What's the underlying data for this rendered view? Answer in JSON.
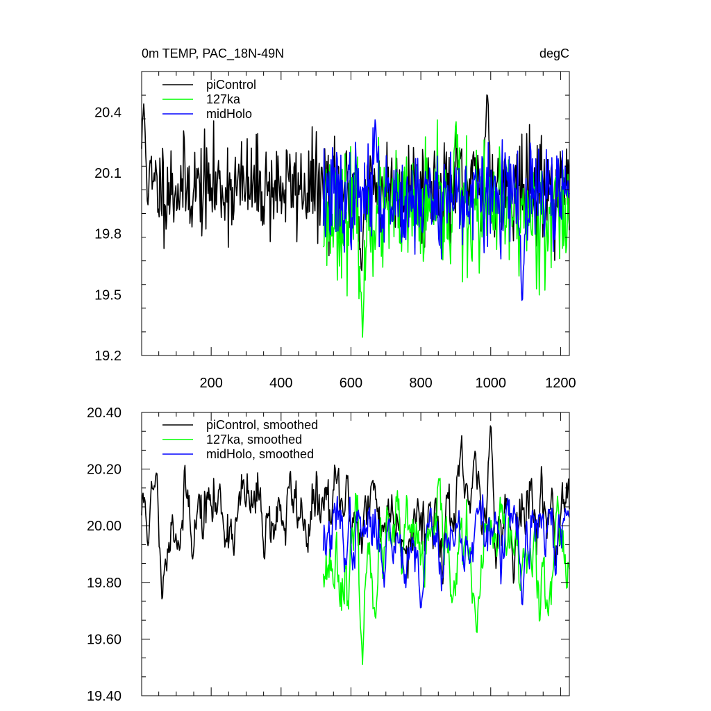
{
  "figure": {
    "title_left": "0m TEMP, PAC_18N-49N",
    "title_right": "degC"
  },
  "chart_data": [
    {
      "type": "line",
      "title": "0m TEMP, PAC_18N-49N",
      "units": "degC",
      "xlim": [
        1,
        1225
      ],
      "ylim": [
        19.2,
        20.6
      ],
      "x_ticks": [
        200,
        400,
        600,
        800,
        1000,
        1200
      ],
      "x_tick_labels": [
        "200",
        "400",
        "600",
        "800",
        "1000",
        "1200"
      ],
      "y_ticks": [
        19.2,
        19.5,
        19.8,
        20.1,
        20.4
      ],
      "y_tick_labels": [
        "19.2",
        "19.5",
        "19.8",
        "20.1",
        "20.4"
      ],
      "legend_position": "top-left",
      "series": [
        {
          "name": "piControl",
          "color": "#000000",
          "x_range": [
            1,
            1225
          ],
          "mean": 20.03,
          "spread": 0.16,
          "seed": 11,
          "extremes": [
            [
              7,
              20.44
            ],
            [
              630,
              19.6
            ],
            [
              990,
              20.52
            ]
          ]
        },
        {
          "name": "127ka",
          "color": "#00ff00",
          "x_range": [
            521,
            1225
          ],
          "mean": 19.9,
          "spread": 0.2,
          "seed": 23,
          "extremes": [
            [
              633,
              19.29
            ],
            [
              900,
              20.38
            ]
          ]
        },
        {
          "name": "midHolo",
          "color": "#0000ff",
          "x_range": [
            521,
            1225
          ],
          "mean": 19.98,
          "spread": 0.17,
          "seed": 37,
          "extremes": [
            [
              670,
              20.37
            ],
            [
              1090,
              19.44
            ]
          ]
        }
      ]
    },
    {
      "type": "line",
      "xlim": [
        1,
        1225
      ],
      "ylim": [
        19.4,
        20.4
      ],
      "x_ticks": [
        200,
        400,
        600,
        800,
        1000,
        1200
      ],
      "y_ticks": [
        19.4,
        19.6,
        19.8,
        20.0,
        20.2,
        20.4
      ],
      "y_tick_labels": [
        "19.40",
        "19.60",
        "19.80",
        "20.00",
        "20.20",
        "20.40"
      ],
      "legend_position": "top-left",
      "series": [
        {
          "name": "piControl, smoothed",
          "color": "#000000",
          "x_range": [
            1,
            1225
          ],
          "mean": 20.05,
          "spread": 0.09,
          "seed": 11,
          "extremes": [
            [
              60,
              19.72
            ],
            [
              1000,
              20.39
            ]
          ]
        },
        {
          "name": "127ka, smoothed",
          "color": "#00ff00",
          "x_range": [
            521,
            1225
          ],
          "mean": 19.89,
          "spread": 0.1,
          "seed": 23,
          "extremes": [
            [
              633,
              19.51
            ],
            [
              960,
              19.59
            ]
          ]
        },
        {
          "name": "midHolo, smoothed",
          "color": "#0000ff",
          "x_range": [
            521,
            1225
          ],
          "mean": 19.96,
          "spread": 0.08,
          "seed": 37,
          "extremes": [
            [
              800,
              19.69
            ],
            [
              1090,
              19.7
            ]
          ]
        }
      ]
    }
  ]
}
